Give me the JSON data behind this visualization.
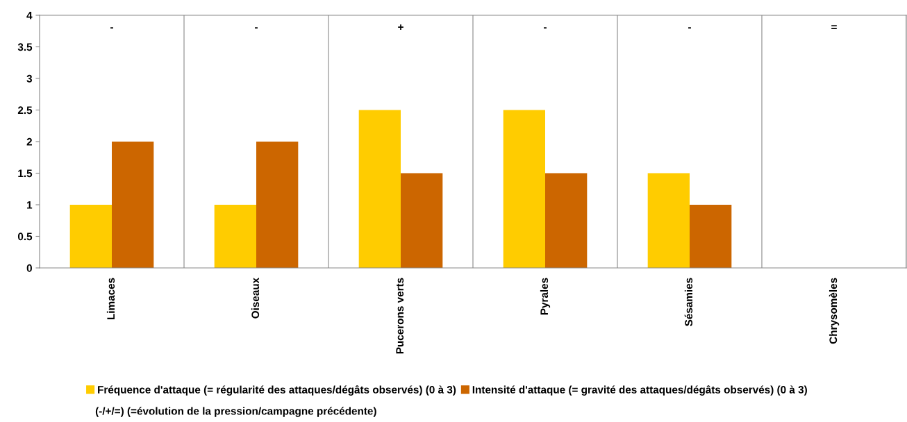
{
  "chart_data": {
    "type": "bar",
    "categories": [
      "Limaces",
      "Oiseaux",
      "Pucerons verts",
      "Pyrales",
      "Sésamies",
      "Chrysomèles"
    ],
    "series": [
      {
        "name": "Fréquence d'attaque (= régularité des attaques/dégâts observés) (0 à 3)",
        "color": "#ffcc00",
        "values": [
          1,
          1,
          2.5,
          2.5,
          1.5,
          0
        ]
      },
      {
        "name": "Intensité d'attaque (= gravité des attaques/dégâts observés) (0 à 3)",
        "color": "#cc6600",
        "values": [
          2,
          2,
          1.5,
          1.5,
          1,
          0
        ]
      }
    ],
    "ylim": [
      0,
      4
    ],
    "yticks": [
      0,
      0.5,
      1,
      1.5,
      2,
      2.5,
      3,
      3.5,
      4
    ],
    "grid": "x",
    "legend": "bottom",
    "annotations": [
      "-",
      "-",
      "+",
      "-",
      "-",
      "=",
      "(-/+/=) (=évolution de la pression/campagne précédente)"
    ]
  }
}
